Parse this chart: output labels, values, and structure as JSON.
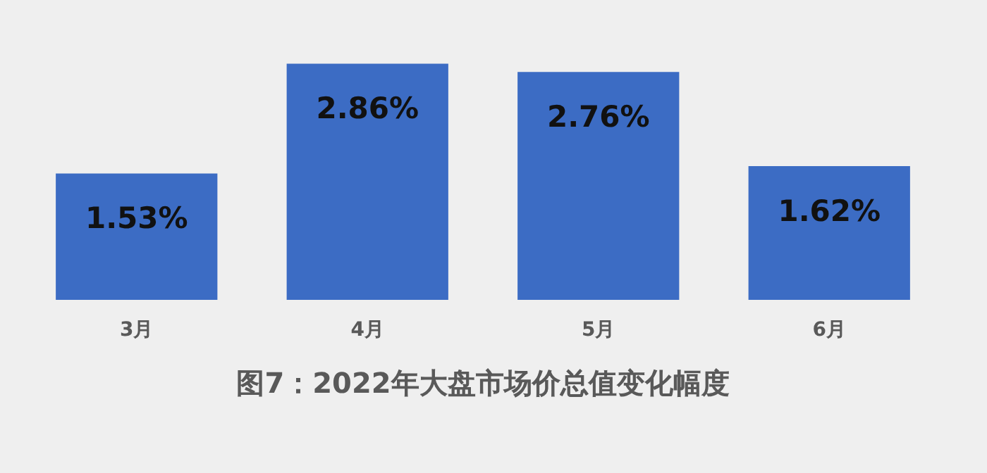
{
  "chart_data": {
    "type": "bar",
    "title": "图7：2022年大盘市场价总值变化幅度",
    "categories": [
      "3月",
      "4月",
      "5月",
      "6月"
    ],
    "values": [
      1.53,
      2.86,
      2.76,
      1.62
    ],
    "value_labels": [
      "1.53%",
      "2.86%",
      "2.76%",
      "1.62%"
    ],
    "color": "#3c6cc4",
    "grid": false
  }
}
